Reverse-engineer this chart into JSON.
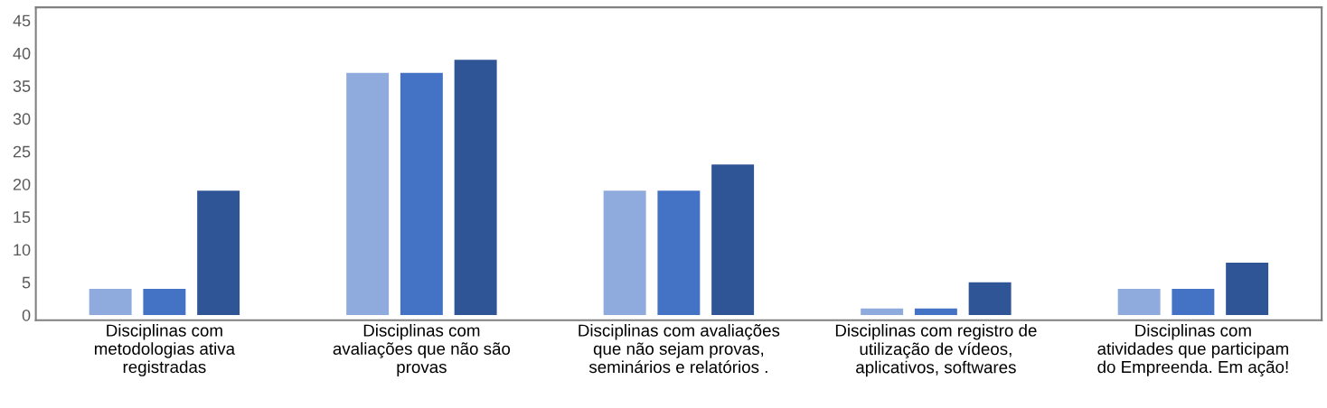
{
  "chart_data": {
    "type": "bar",
    "categories": [
      "Disciplinas com\nmetodologias ativa\nregistradas",
      "Disciplinas com\navaliações que não são\nprovas",
      "Disciplinas com avaliações\nque não sejam provas,\nseminários e relatórios .",
      "Disciplinas com registro de\nutilização de vídeos,\naplicativos, softwares",
      "Disciplinas com\natividades que participam\ndo Empreenda. Em ação!"
    ],
    "series": [
      {
        "color": "#8faadc",
        "values": [
          4,
          37,
          19,
          1,
          4
        ]
      },
      {
        "color": "#4472c4",
        "values": [
          4,
          37,
          19,
          1,
          4
        ]
      },
      {
        "color": "#2f5597",
        "values": [
          19,
          39,
          23,
          5,
          8
        ]
      }
    ],
    "ylim": [
      -0.8,
      47
    ],
    "yticks": [
      0,
      5,
      10,
      15,
      20,
      25,
      30,
      35,
      40,
      45
    ],
    "grid": false
  }
}
